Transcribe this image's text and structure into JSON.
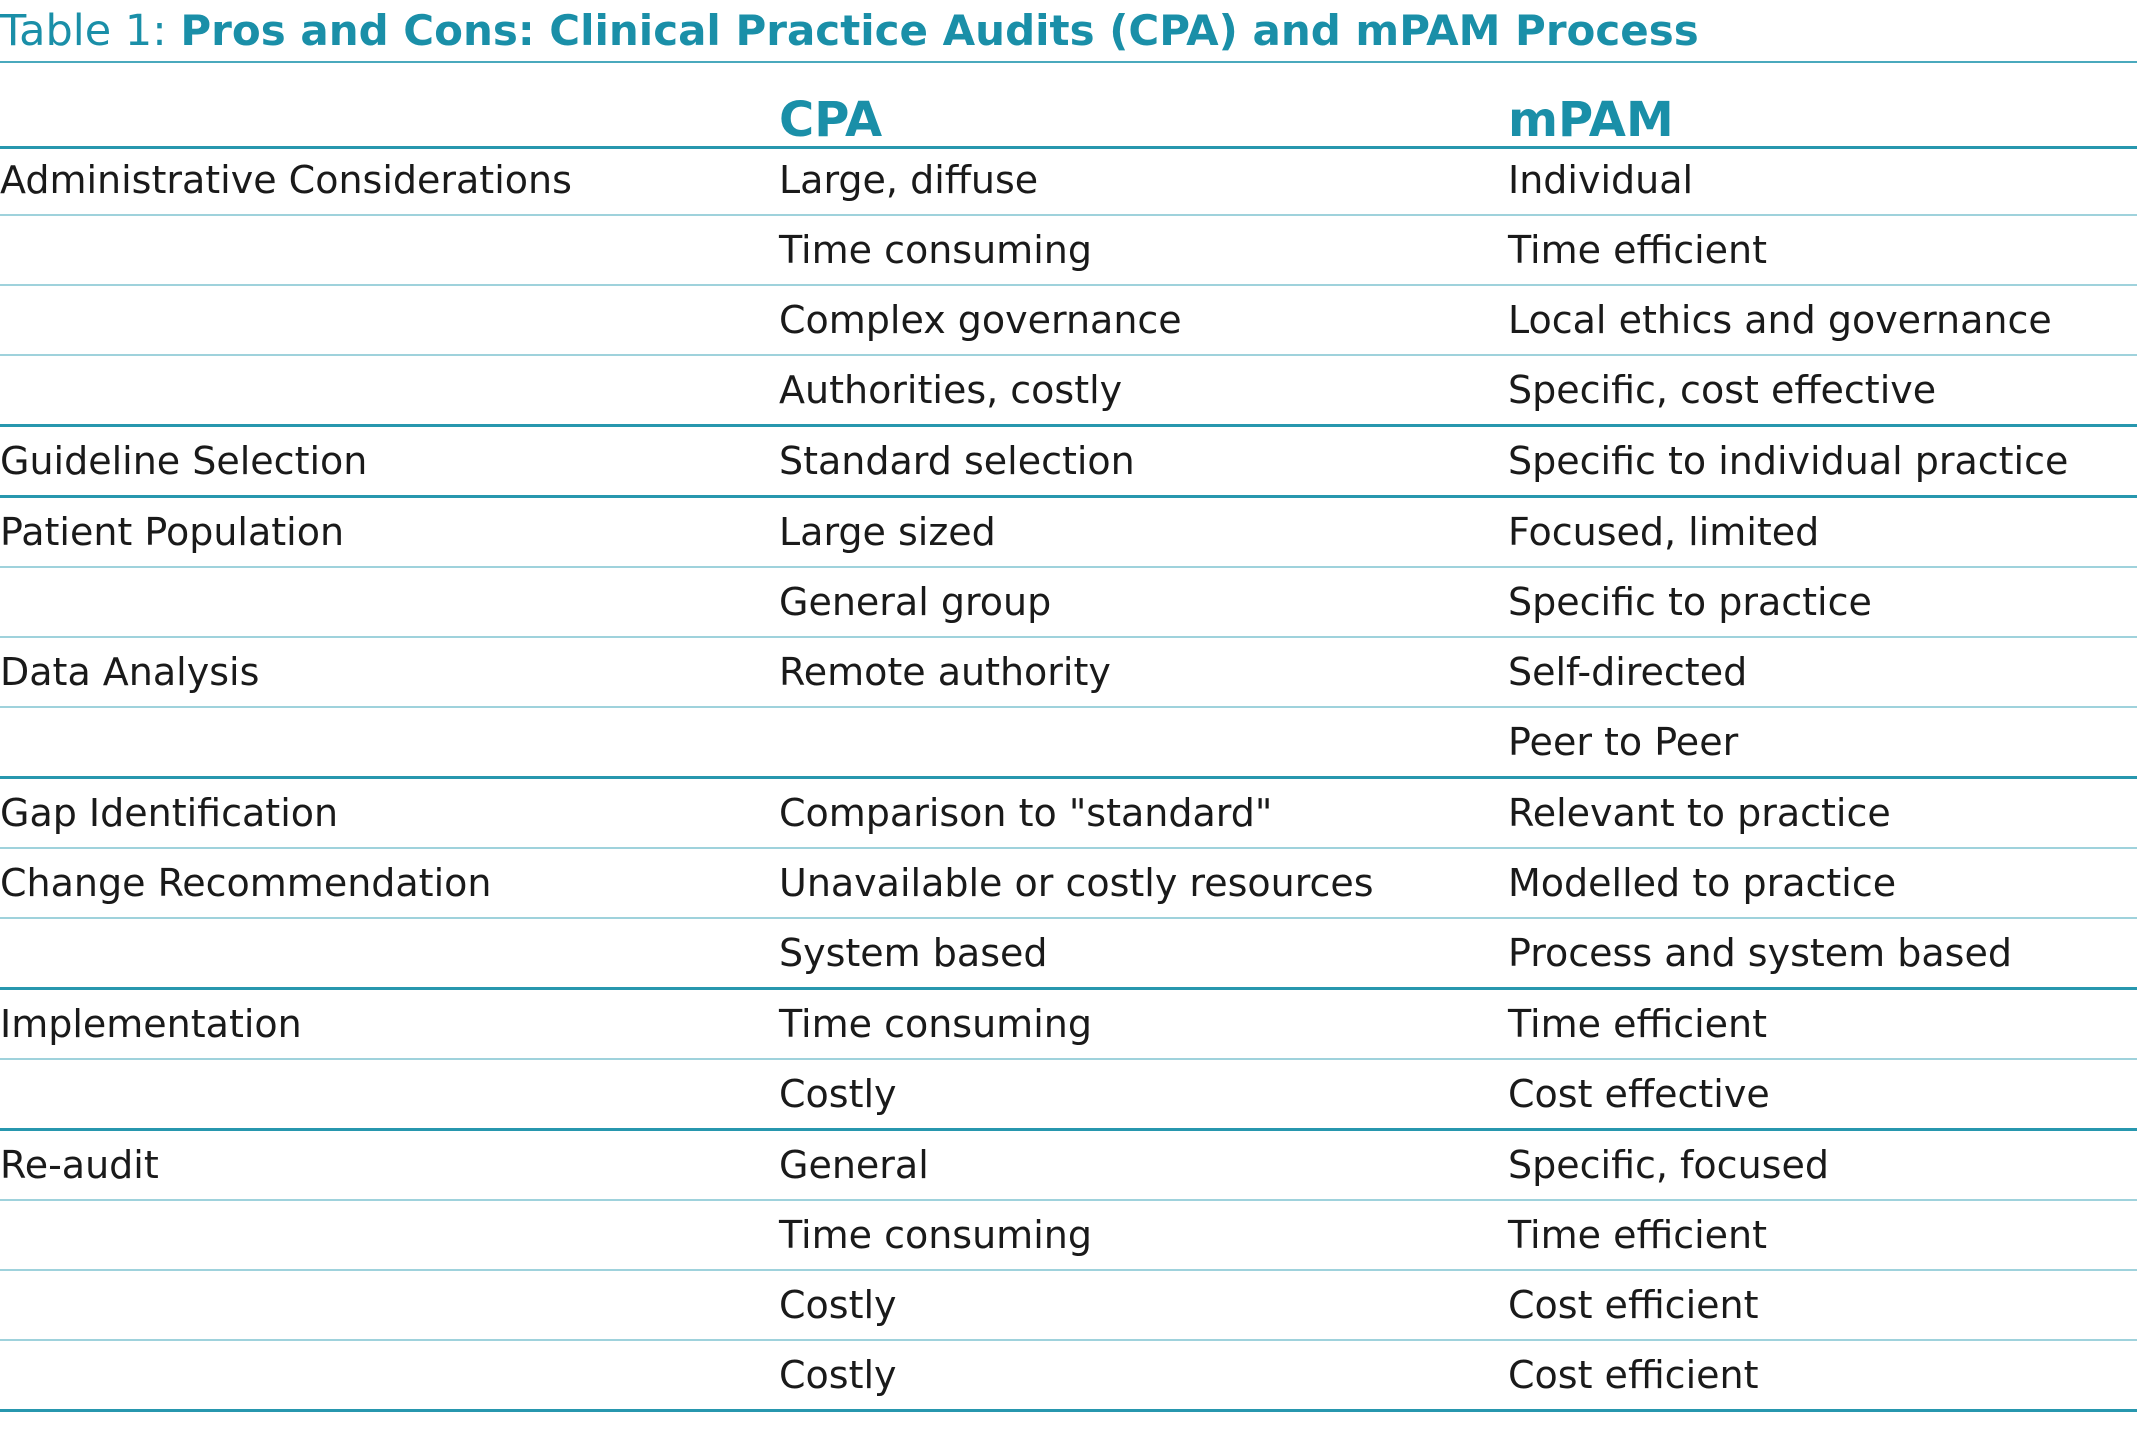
{
  "caption": {
    "prefix": "Table 1: ",
    "title": "Pros and Cons: Clinical Practice Audits (CPA) and mPAM Process"
  },
  "columns": [
    "",
    "CPA",
    "mPAM"
  ],
  "colors": {
    "accent": "#1a8fa8",
    "rule_strong": "#2797ae",
    "rule_light": "#9fd2dc"
  },
  "rows": [
    {
      "category": "Administrative Considerations",
      "cpa": "Large, diffuse",
      "mpam": "Individual",
      "group_end": false
    },
    {
      "category": "",
      "cpa": "Time consuming",
      "mpam": "Time efficient",
      "group_end": false
    },
    {
      "category": "",
      "cpa": "Complex governance",
      "mpam": "Local ethics and governance",
      "group_end": false
    },
    {
      "category": "",
      "cpa": "Authorities, costly",
      "mpam": "Specific, cost effective",
      "group_end": true
    },
    {
      "category": "Guideline Selection",
      "cpa": "Standard selection",
      "mpam": "Specific to individual practice",
      "group_end": true
    },
    {
      "category": "Patient Population",
      "cpa": "Large sized",
      "mpam": "Focused, limited",
      "group_end": false
    },
    {
      "category": "",
      "cpa": "General group",
      "mpam": "Specific to practice",
      "group_end": false
    },
    {
      "category": "Data Analysis",
      "cpa": "Remote authority",
      "mpam": "Self-directed",
      "group_end": false
    },
    {
      "category": "",
      "cpa": "",
      "mpam": "Peer to Peer",
      "group_end": true
    },
    {
      "category": "Gap Identification",
      "cpa": "Comparison to \"standard\"",
      "mpam": "Relevant to practice",
      "group_end": false
    },
    {
      "category": "Change Recommendation",
      "cpa": "Unavailable or costly resources",
      "mpam": "Modelled to practice",
      "group_end": false
    },
    {
      "category": "",
      "cpa": "System based",
      "mpam": "Process and system based",
      "group_end": true
    },
    {
      "category": "Implementation",
      "cpa": "Time consuming",
      "mpam": "Time efficient",
      "group_end": false
    },
    {
      "category": "",
      "cpa": "Costly",
      "mpam": "Cost effective",
      "group_end": true
    },
    {
      "category": "Re-audit",
      "cpa": "General",
      "mpam": "Specific, focused",
      "group_end": false
    },
    {
      "category": "",
      "cpa": "Time consuming",
      "mpam": "Time efficient",
      "group_end": false
    },
    {
      "category": "",
      "cpa": "Costly",
      "mpam": "Cost efficient",
      "group_end": false
    },
    {
      "category": "",
      "cpa": "Costly",
      "mpam": "Cost efficient",
      "group_end": true
    }
  ]
}
